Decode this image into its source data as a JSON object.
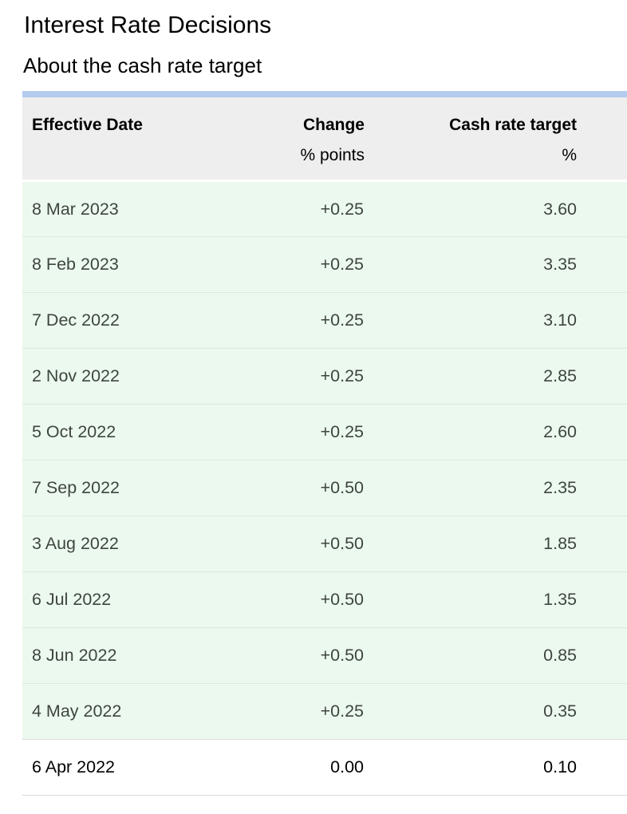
{
  "page": {
    "title": "Interest Rate Decisions",
    "subtitle": "About the cash rate target"
  },
  "table": {
    "columns": [
      {
        "label": "Effective Date",
        "sublabel": ""
      },
      {
        "label": "Change",
        "sublabel": "% points"
      },
      {
        "label": "Cash rate target",
        "sublabel": "%"
      }
    ],
    "rows": [
      {
        "date": "8 Mar 2023",
        "change": "+0.25",
        "target": "3.60",
        "highlighted": true
      },
      {
        "date": "8 Feb 2023",
        "change": "+0.25",
        "target": "3.35",
        "highlighted": true
      },
      {
        "date": "7 Dec 2022",
        "change": "+0.25",
        "target": "3.10",
        "highlighted": true
      },
      {
        "date": "2 Nov 2022",
        "change": "+0.25",
        "target": "2.85",
        "highlighted": true
      },
      {
        "date": "5 Oct 2022",
        "change": "+0.25",
        "target": "2.60",
        "highlighted": true
      },
      {
        "date": "7 Sep 2022",
        "change": "+0.50",
        "target": "2.35",
        "highlighted": true
      },
      {
        "date": "3 Aug 2022",
        "change": "+0.50",
        "target": "1.85",
        "highlighted": true
      },
      {
        "date": "6 Jul 2022",
        "change": "+0.50",
        "target": "1.35",
        "highlighted": true
      },
      {
        "date": "8 Jun 2022",
        "change": "+0.50",
        "target": "0.85",
        "highlighted": true
      },
      {
        "date": "4 May 2022",
        "change": "+0.25",
        "target": "0.35",
        "highlighted": true
      },
      {
        "date": "6 Apr 2022",
        "change": "0.00",
        "target": "0.10",
        "highlighted": false
      }
    ]
  },
  "colors": {
    "accent_bar": "#b3cbee",
    "header_bg": "#eeeeee",
    "row_highlight_bg": "#ecf9ee",
    "row_plain_bg": "#ffffff",
    "row_text": "#3e453f"
  }
}
